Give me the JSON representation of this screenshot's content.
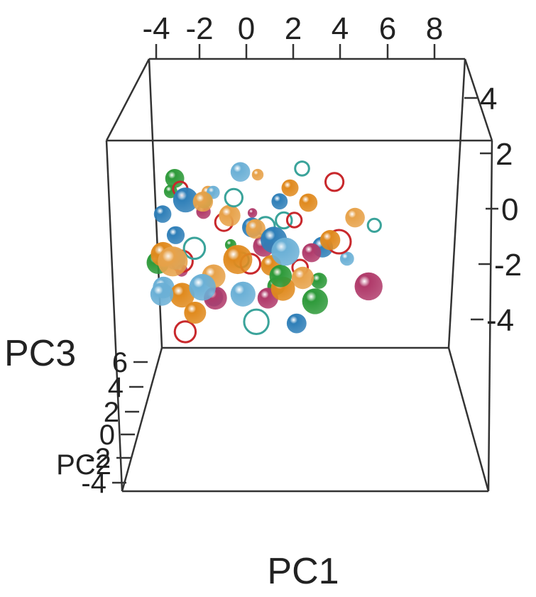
{
  "chart_data": {
    "type": "scatter",
    "dimensions": 3,
    "xlabel": "PC1",
    "ylabel": "PC2",
    "zlabel": "PC3",
    "x_ticks": [
      "-4",
      "-2",
      "0",
      "2",
      "4",
      "6",
      "8"
    ],
    "y_ticks": [
      "-4",
      "-2",
      "0",
      "2",
      "4"
    ],
    "z_ticks": [
      "-4",
      "-2",
      "0",
      "2",
      "4",
      "6"
    ],
    "xlim": [
      -4,
      9
    ],
    "ylim": [
      -4,
      4
    ],
    "zlim": [
      -4,
      6
    ],
    "grid": false,
    "point_colors": [
      "#2f7fb8",
      "#e08a1e",
      "#2e9a3a",
      "#c8282c",
      "#6bb0d6",
      "#e7a24a",
      "#b03a6a",
      "#3aa39a"
    ],
    "points": [
      [
        -3.6,
        1.8,
        1.2
      ],
      [
        -3.2,
        0.9,
        3.1
      ],
      [
        -3.9,
        -0.5,
        1.0
      ],
      [
        -2.9,
        2.3,
        -0.2
      ],
      [
        -3.4,
        -1.2,
        2.4
      ],
      [
        -2.5,
        1.1,
        4.2
      ],
      [
        -3.0,
        -2.0,
        -1.1
      ],
      [
        -1.8,
        0.4,
        1.5
      ],
      [
        -2.2,
        2.8,
        2.0
      ],
      [
        -1.5,
        -1.6,
        3.2
      ],
      [
        -3.8,
        1.4,
        -1.8
      ],
      [
        -2.7,
        -0.8,
        0.3
      ],
      [
        -1.1,
        1.9,
        -0.7
      ],
      [
        -0.6,
        -0.3,
        2.6
      ],
      [
        -2.0,
        0.0,
        -2.6
      ],
      [
        0.3,
        2.5,
        1.1
      ],
      [
        -0.9,
        -2.4,
        0.4
      ],
      [
        0.8,
        1.0,
        3.8
      ],
      [
        -0.2,
        -1.0,
        -1.5
      ],
      [
        1.2,
        -0.6,
        0.9
      ],
      [
        0.5,
        3.0,
        -0.4
      ],
      [
        1.6,
        1.6,
        2.2
      ],
      [
        2.2,
        -1.9,
        1.4
      ],
      [
        1.9,
        0.2,
        -0.9
      ],
      [
        2.8,
        2.1,
        0.6
      ],
      [
        3.1,
        -0.7,
        2.9
      ],
      [
        2.5,
        -2.8,
        -1.2
      ],
      [
        3.6,
        0.9,
        -0.1
      ],
      [
        3.3,
        1.7,
        4.6
      ],
      [
        4.1,
        -1.3,
        0.8
      ],
      [
        4.6,
        0.4,
        1.9
      ],
      [
        4.0,
        2.6,
        -1.6
      ],
      [
        5.2,
        -0.2,
        0.2
      ],
      [
        5.6,
        1.2,
        2.4
      ],
      [
        5.0,
        -2.2,
        -0.6
      ],
      [
        6.1,
        0.6,
        1.3
      ],
      [
        6.6,
        -1.0,
        -0.3
      ],
      [
        7.0,
        1.5,
        0.9
      ],
      [
        7.6,
        -0.4,
        3.3
      ],
      [
        8.2,
        0.3,
        -0.8
      ],
      [
        -3.1,
        0.3,
        0.1
      ],
      [
        -2.4,
        -1.5,
        1.9
      ],
      [
        -1.4,
        2.2,
        0.7
      ],
      [
        -0.4,
        0.8,
        -0.1
      ],
      [
        0.9,
        -1.4,
        2.0
      ],
      [
        1.4,
        2.4,
        -1.4
      ],
      [
        2.0,
        0.6,
        1.7
      ],
      [
        2.9,
        -0.1,
        -2.0
      ],
      [
        3.8,
        -2.6,
        2.2
      ],
      [
        4.4,
        1.9,
        0.3
      ],
      [
        -3.3,
        2.6,
        -0.6
      ],
      [
        -2.1,
        -2.7,
        2.7
      ],
      [
        -1.0,
        -0.1,
        4.0
      ],
      [
        0.0,
        1.4,
        0.5
      ],
      [
        1.0,
        0.1,
        -2.3
      ],
      [
        1.7,
        -2.1,
        3.0
      ],
      [
        2.6,
        1.3,
        2.6
      ],
      [
        3.4,
        2.9,
        1.0
      ],
      [
        4.8,
        -0.9,
        3.6
      ],
      [
        5.9,
        2.2,
        -1.1
      ],
      [
        -2.6,
        0.6,
        2.9
      ],
      [
        -1.6,
        1.3,
        -1.9
      ],
      [
        -0.7,
        -2.0,
        1.2
      ],
      [
        0.6,
        -0.9,
        0.0
      ],
      [
        1.3,
        1.1,
        1.0
      ],
      [
        2.3,
        -1.1,
        0.1
      ],
      [
        3.0,
        0.1,
        3.4
      ],
      [
        3.9,
        -1.8,
        -1.0
      ],
      [
        -3.7,
        -1.9,
        0.5
      ],
      [
        -1.2,
        2.9,
        2.4
      ]
    ]
  }
}
